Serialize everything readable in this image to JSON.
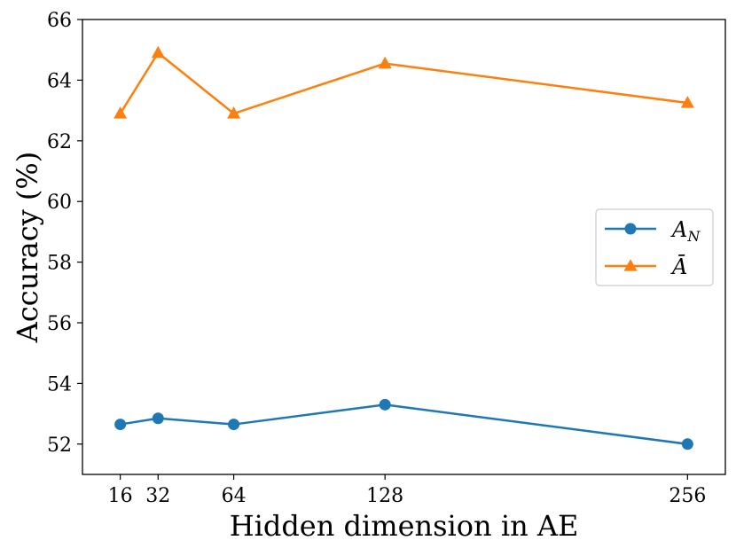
{
  "chart_data": {
    "type": "line",
    "xlabel": "Hidden dimension in AE",
    "ylabel": "Accuracy (%)",
    "x": [
      16,
      32,
      64,
      128,
      256
    ],
    "xticks": [
      "16",
      "32",
      "64",
      "128",
      "256"
    ],
    "yticks": [
      "52",
      "54",
      "56",
      "58",
      "60",
      "62",
      "64",
      "66"
    ],
    "ylim": [
      51,
      66
    ],
    "grid": false,
    "legend_position": "center-right",
    "series": [
      {
        "name": "A_N",
        "label_main": "A",
        "label_sub": "N",
        "marker": "circle",
        "color": "#1f77b4",
        "values": [
          52.65,
          52.85,
          52.65,
          53.3,
          52.0
        ]
      },
      {
        "name": "Ā",
        "label_main": "Ā",
        "label_sub": "",
        "marker": "triangle",
        "color": "#ff7f0e",
        "values": [
          62.9,
          64.9,
          62.9,
          64.55,
          63.25
        ]
      }
    ]
  }
}
